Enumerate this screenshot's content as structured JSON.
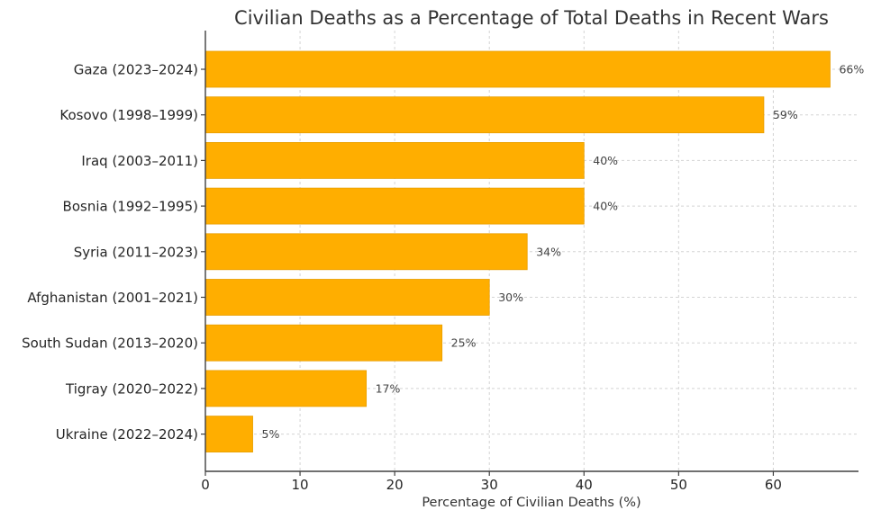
{
  "chart_data": {
    "type": "bar",
    "orientation": "horizontal",
    "title": "Civilian Deaths as a Percentage of Total Deaths in Recent Wars",
    "xlabel": "Percentage of Civilian Deaths (%)",
    "ylabel": "",
    "xlim": [
      0,
      69
    ],
    "xticks": [
      0,
      10,
      20,
      30,
      40,
      50,
      60
    ],
    "grid": true,
    "categories": [
      "Gaza (2023–2024)",
      "Kosovo (1998–1999)",
      "Iraq (2003–2011)",
      "Bosnia (1992–1995)",
      "Syria (2011–2023)",
      "Afghanistan (2001–2021)",
      "South Sudan (2013–2020)",
      "Tigray (2020–2022)",
      "Ukraine (2022–2024)"
    ],
    "values": [
      66,
      59,
      40,
      40,
      34,
      30,
      25,
      17,
      5
    ],
    "data_labels": [
      "66%",
      "59%",
      "40%",
      "40%",
      "34%",
      "30%",
      "25%",
      "17%",
      "5%"
    ],
    "colors": {
      "bar": "#FFAE00",
      "bar_edge": "#E89E00",
      "axis": "#404040",
      "grid": "#d4d4d4"
    }
  }
}
